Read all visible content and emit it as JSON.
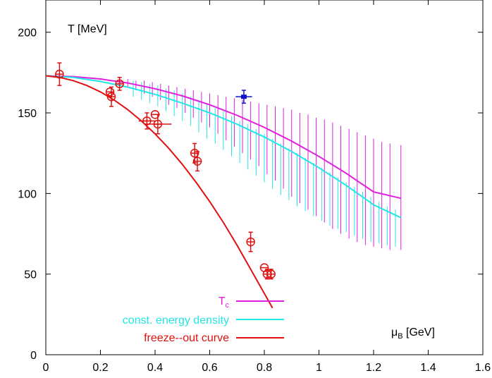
{
  "chart_data": {
    "type": "scatter",
    "title": "",
    "ylabel": "T [MeV]",
    "xlabel_main": "μ",
    "xlabel_sub": "B",
    "xlabel_unit": " [GeV]",
    "xlim": [
      0,
      1.6
    ],
    "ylim": [
      0,
      220
    ],
    "xticks": [
      0,
      0.2,
      0.4,
      0.6,
      0.8,
      1,
      1.2,
      1.4,
      1.6
    ],
    "xtick_labels": [
      "0",
      "0.2",
      "0.4",
      "0.6",
      "0.8",
      "1",
      "1.2",
      "1.4",
      "1.6"
    ],
    "yticks": [
      0,
      50,
      100,
      150,
      200
    ],
    "ytick_labels": [
      "0",
      "50",
      "100",
      "150",
      "200"
    ],
    "grid": false,
    "legend_placement": "bottom-left",
    "legend": [
      {
        "label_main": "T",
        "label_sub": "c",
        "color": "#e01ee0"
      },
      {
        "label_main": "const. energy density",
        "label_sub": "",
        "color": "#22e6e6"
      },
      {
        "label_main": "freeze--out curve",
        "label_sub": "",
        "color": "#e01010"
      }
    ],
    "series": [
      {
        "key": "tc",
        "color": "#e01ee0",
        "x": [
          0,
          0.1,
          0.2,
          0.3,
          0.4,
          0.5,
          0.6,
          0.7,
          0.8,
          0.9,
          1.0,
          1.1,
          1.2,
          1.3
        ],
        "y": [
          173,
          172.5,
          171,
          168.5,
          165,
          160.5,
          155,
          148.5,
          141,
          132.5,
          123,
          112.5,
          101,
          97
        ],
        "band_x": [
          0.3,
          0.33,
          0.36,
          0.39,
          0.42,
          0.45,
          0.48,
          0.51,
          0.54,
          0.57,
          0.6,
          0.63,
          0.66,
          0.69,
          0.72,
          0.75,
          0.78,
          0.81,
          0.84,
          0.87,
          0.9,
          0.93,
          0.96,
          0.99,
          1.02,
          1.05,
          1.08,
          1.11,
          1.14,
          1.17,
          1.2,
          1.23,
          1.26,
          1.3
        ],
        "band_lo": [
          166,
          164,
          162,
          160,
          158,
          155,
          153,
          150,
          147,
          144,
          141,
          137,
          133,
          129,
          125,
          121,
          117,
          112,
          108,
          103,
          98,
          94,
          90,
          86,
          82,
          78,
          75,
          72,
          70,
          68,
          67,
          66,
          65,
          65
        ],
        "band_hi": [
          171,
          170,
          170,
          169,
          168,
          167,
          166,
          165,
          164,
          163,
          162,
          161,
          160,
          159,
          158,
          157,
          156,
          155,
          154,
          153,
          152,
          150,
          149,
          147,
          146,
          144,
          142,
          140,
          138,
          136,
          134,
          132,
          131,
          130
        ]
      },
      {
        "key": "energy",
        "color": "#22e6e6",
        "x": [
          0,
          0.1,
          0.2,
          0.3,
          0.4,
          0.5,
          0.6,
          0.7,
          0.8,
          0.9,
          1.0,
          1.1,
          1.2,
          1.3
        ],
        "y": [
          173,
          172,
          169.5,
          166,
          161.5,
          156,
          150,
          143,
          135,
          126,
          116,
          105,
          93,
          85
        ],
        "band_x": [
          0.32,
          0.35,
          0.38,
          0.41,
          0.44,
          0.47,
          0.5,
          0.53,
          0.56,
          0.59,
          0.62,
          0.65,
          0.68,
          0.71,
          0.74,
          0.77,
          0.8,
          0.83,
          0.86,
          0.89,
          0.92,
          0.95,
          0.98,
          1.01,
          1.04,
          1.07,
          1.1,
          1.13,
          1.16,
          1.19,
          1.22,
          1.25,
          1.28
        ],
        "band_lo": [
          160,
          158,
          156,
          154,
          151,
          148,
          145,
          142,
          138,
          134,
          131,
          127,
          123,
          119,
          115,
          111,
          107,
          103,
          99,
          96,
          92,
          89,
          86,
          83,
          80,
          78,
          76,
          74,
          72,
          70,
          69,
          68,
          67
        ],
        "band_hi": [
          170,
          169,
          168,
          167,
          165,
          164,
          162,
          160,
          158,
          156,
          153,
          151,
          148,
          145,
          143,
          140,
          137,
          134,
          131,
          128,
          125,
          122,
          119,
          116,
          113,
          110,
          107,
          104,
          101,
          98,
          95,
          92,
          90
        ]
      },
      {
        "key": "freezeout",
        "color": "#e01010",
        "x": [
          0,
          0.05,
          0.1,
          0.15,
          0.2,
          0.25,
          0.3,
          0.35,
          0.4,
          0.45,
          0.5,
          0.55,
          0.6,
          0.65,
          0.7,
          0.75,
          0.8,
          0.83
        ],
        "y": [
          173,
          172,
          170,
          167,
          163,
          158,
          152,
          145,
          137,
          128,
          118,
          107,
          95,
          82,
          68,
          53,
          38,
          29
        ]
      }
    ],
    "points": [
      {
        "x": 0.05,
        "y": 174,
        "yerr": 7,
        "xerr": 0
      },
      {
        "x": 0.235,
        "y": 163,
        "yerr": 0,
        "xerr": 0
      },
      {
        "x": 0.24,
        "y": 160,
        "yerr": 6,
        "xerr": 0
      },
      {
        "x": 0.27,
        "y": 168,
        "yerr": 4,
        "xerr": 0
      },
      {
        "x": 0.37,
        "y": 145,
        "yerr": 5,
        "xerr": 0.03
      },
      {
        "x": 0.4,
        "y": 149,
        "yerr": 0,
        "xerr": 0
      },
      {
        "x": 0.41,
        "y": 143,
        "yerr": 6,
        "xerr": 0.05
      },
      {
        "x": 0.545,
        "y": 125,
        "yerr": 6,
        "xerr": 0
      },
      {
        "x": 0.555,
        "y": 120,
        "yerr": 6,
        "xerr": 0
      },
      {
        "x": 0.75,
        "y": 70,
        "yerr": 6,
        "xerr": 0
      },
      {
        "x": 0.8,
        "y": 54,
        "yerr": 0,
        "xerr": 0
      },
      {
        "x": 0.81,
        "y": 50,
        "yerr": 3,
        "xerr": 0
      },
      {
        "x": 0.825,
        "y": 50,
        "yerr": 3,
        "xerr": 0
      }
    ],
    "special_point": {
      "x": 0.725,
      "y": 160,
      "yerr": 4,
      "xerr": 0.03,
      "color": "#1010d0"
    }
  }
}
